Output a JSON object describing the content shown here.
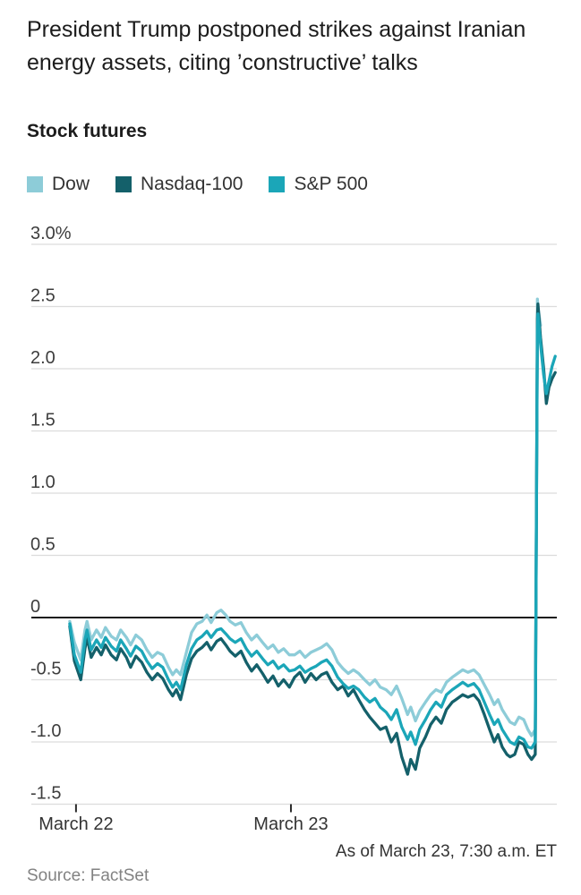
{
  "header": {
    "title": "President Trump postponed strikes against Iranian energy assets, citing ’constructive’ talks",
    "section_label": "Stock futures"
  },
  "legend": {
    "items": [
      {
        "label": "Dow",
        "color": "#8dccd8"
      },
      {
        "label": "Nasdaq-100",
        "color": "#14606a"
      },
      {
        "label": "S&P 500",
        "color": "#1ba6b8"
      }
    ]
  },
  "footer": {
    "as_of": "As of March 23, 7:30 a.m. ET",
    "source": "Source: FactSet"
  },
  "chart_data": {
    "type": "line",
    "title": "Stock futures",
    "unit": "% change",
    "ylim": [
      -1.5,
      3.0
    ],
    "yticks": [
      3.0,
      2.5,
      2.0,
      1.5,
      1.0,
      0.5,
      0,
      -0.5,
      -1.0,
      -1.5
    ],
    "ytick_labels": [
      "3.0%",
      "2.5",
      "2.0",
      "1.5",
      "1.0",
      "0.5",
      "0",
      "-0.5",
      "-1.0",
      "-1.5"
    ],
    "grid": "horizontal",
    "zero_line": true,
    "legend_position": "top",
    "xticks": [
      {
        "label": "March 22",
        "pos": 0.085
      },
      {
        "label": "March 23",
        "pos": 0.494
      }
    ],
    "x": [
      0.073,
      0.082,
      0.094,
      0.102,
      0.106,
      0.114,
      0.124,
      0.133,
      0.141,
      0.152,
      0.162,
      0.17,
      0.181,
      0.189,
      0.199,
      0.21,
      0.22,
      0.23,
      0.24,
      0.25,
      0.261,
      0.269,
      0.276,
      0.284,
      0.295,
      0.305,
      0.315,
      0.325,
      0.334,
      0.342,
      0.353,
      0.361,
      0.37,
      0.378,
      0.388,
      0.399,
      0.409,
      0.419,
      0.429,
      0.44,
      0.45,
      0.46,
      0.47,
      0.48,
      0.491,
      0.501,
      0.511,
      0.521,
      0.532,
      0.542,
      0.552,
      0.562,
      0.572,
      0.583,
      0.593,
      0.603,
      0.613,
      0.623,
      0.634,
      0.644,
      0.654,
      0.664,
      0.675,
      0.685,
      0.695,
      0.705,
      0.716,
      0.722,
      0.731,
      0.739,
      0.75,
      0.76,
      0.77,
      0.78,
      0.79,
      0.801,
      0.811,
      0.821,
      0.831,
      0.842,
      0.852,
      0.862,
      0.872,
      0.881,
      0.888,
      0.896,
      0.905,
      0.911,
      0.92,
      0.928,
      0.937,
      0.945,
      0.952,
      0.959,
      0.963,
      0.964,
      0.969,
      0.975,
      0.98,
      0.985,
      0.991,
      0.997
    ],
    "series": [
      {
        "name": "Dow",
        "color": "#8dccd8",
        "values": [
          -0.03,
          -0.2,
          -0.34,
          -0.1,
          -0.03,
          -0.18,
          -0.1,
          -0.16,
          -0.08,
          -0.15,
          -0.18,
          -0.1,
          -0.16,
          -0.22,
          -0.14,
          -0.18,
          -0.26,
          -0.32,
          -0.28,
          -0.3,
          -0.4,
          -0.46,
          -0.42,
          -0.46,
          -0.28,
          -0.12,
          -0.05,
          -0.03,
          0.02,
          -0.04,
          0.04,
          0.06,
          0.02,
          -0.03,
          -0.06,
          -0.04,
          -0.12,
          -0.18,
          -0.14,
          -0.2,
          -0.25,
          -0.22,
          -0.28,
          -0.25,
          -0.3,
          -0.3,
          -0.27,
          -0.32,
          -0.28,
          -0.26,
          -0.24,
          -0.21,
          -0.26,
          -0.36,
          -0.41,
          -0.45,
          -0.42,
          -0.45,
          -0.5,
          -0.54,
          -0.5,
          -0.56,
          -0.58,
          -0.62,
          -0.55,
          -0.65,
          -0.78,
          -0.72,
          -0.83,
          -0.75,
          -0.68,
          -0.62,
          -0.58,
          -0.6,
          -0.52,
          -0.48,
          -0.45,
          -0.42,
          -0.44,
          -0.42,
          -0.46,
          -0.54,
          -0.62,
          -0.7,
          -0.66,
          -0.74,
          -0.8,
          -0.84,
          -0.86,
          -0.8,
          -0.82,
          -0.9,
          -0.95,
          -0.9,
          2.56,
          2.5,
          2.35,
          null,
          null,
          null,
          null,
          null
        ]
      },
      {
        "name": "Nasdaq-100",
        "color": "#14606a",
        "values": [
          -0.07,
          -0.35,
          -0.5,
          -0.25,
          -0.16,
          -0.32,
          -0.24,
          -0.3,
          -0.22,
          -0.3,
          -0.34,
          -0.25,
          -0.32,
          -0.4,
          -0.31,
          -0.36,
          -0.44,
          -0.5,
          -0.45,
          -0.49,
          -0.58,
          -0.63,
          -0.58,
          -0.66,
          -0.46,
          -0.33,
          -0.27,
          -0.24,
          -0.2,
          -0.26,
          -0.19,
          -0.17,
          -0.22,
          -0.27,
          -0.31,
          -0.27,
          -0.36,
          -0.43,
          -0.38,
          -0.45,
          -0.52,
          -0.47,
          -0.55,
          -0.5,
          -0.56,
          -0.48,
          -0.44,
          -0.52,
          -0.45,
          -0.5,
          -0.46,
          -0.44,
          -0.52,
          -0.58,
          -0.55,
          -0.63,
          -0.58,
          -0.66,
          -0.74,
          -0.8,
          -0.85,
          -0.9,
          -0.88,
          -1.0,
          -0.93,
          -1.12,
          -1.26,
          -1.14,
          -1.22,
          -1.05,
          -0.96,
          -0.86,
          -0.8,
          -0.85,
          -0.74,
          -0.68,
          -0.65,
          -0.62,
          -0.64,
          -0.62,
          -0.67,
          -0.78,
          -0.9,
          -1.0,
          -0.94,
          -1.04,
          -1.1,
          -1.12,
          -1.1,
          -1.0,
          -1.02,
          -1.1,
          -1.14,
          -1.1,
          2.4,
          2.52,
          2.25,
          2.0,
          1.72,
          1.85,
          1.92,
          1.97
        ]
      },
      {
        "name": "S&P 500",
        "color": "#1ba6b8",
        "values": [
          -0.05,
          -0.3,
          -0.44,
          -0.18,
          -0.1,
          -0.26,
          -0.18,
          -0.24,
          -0.16,
          -0.23,
          -0.27,
          -0.18,
          -0.25,
          -0.31,
          -0.23,
          -0.27,
          -0.35,
          -0.41,
          -0.37,
          -0.4,
          -0.5,
          -0.56,
          -0.52,
          -0.58,
          -0.38,
          -0.25,
          -0.18,
          -0.15,
          -0.11,
          -0.16,
          -0.1,
          -0.09,
          -0.13,
          -0.17,
          -0.2,
          -0.17,
          -0.25,
          -0.31,
          -0.27,
          -0.33,
          -0.38,
          -0.35,
          -0.41,
          -0.38,
          -0.43,
          -0.42,
          -0.39,
          -0.44,
          -0.41,
          -0.39,
          -0.36,
          -0.34,
          -0.39,
          -0.48,
          -0.53,
          -0.57,
          -0.55,
          -0.58,
          -0.64,
          -0.68,
          -0.65,
          -0.72,
          -0.76,
          -0.82,
          -0.74,
          -0.88,
          -0.98,
          -0.92,
          -1.02,
          -0.9,
          -0.82,
          -0.74,
          -0.68,
          -0.72,
          -0.62,
          -0.58,
          -0.55,
          -0.52,
          -0.55,
          -0.53,
          -0.58,
          -0.68,
          -0.78,
          -0.86,
          -0.82,
          -0.9,
          -0.96,
          -1.0,
          -1.02,
          -0.96,
          -0.98,
          -1.04,
          -1.05,
          -1.0,
          2.3,
          2.44,
          2.2,
          1.95,
          1.8,
          1.9,
          2.02,
          2.1
        ]
      }
    ]
  }
}
